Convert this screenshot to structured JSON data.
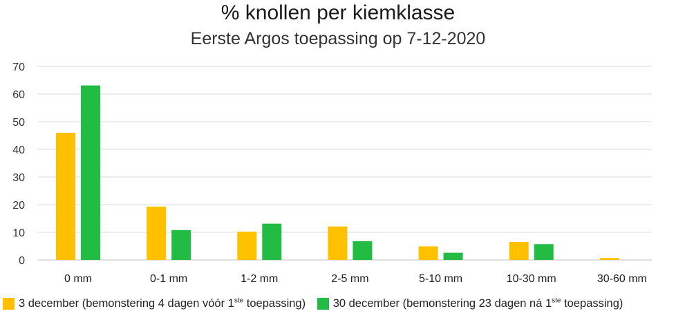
{
  "chart_data": {
    "type": "bar",
    "title": "% knollen per kiemklasse",
    "subtitle": "Eerste Argos toepassing op 7-12-2020",
    "categories": [
      "0 mm",
      "0-1 mm",
      "1-2 mm",
      "2-5 mm",
      "5-10 mm",
      "10-30 mm",
      "30-60 mm"
    ],
    "ylim": [
      0,
      70
    ],
    "yticks": [
      0,
      10,
      20,
      30,
      40,
      50,
      60,
      70
    ],
    "grid": true,
    "legend_position": "bottom",
    "series": [
      {
        "name": "3 december (bemonstering 4 dagen vóór 1ste toepassing)",
        "legend_prefix": "3 december (bemonstering 4 dagen vóór 1",
        "legend_sup": "ste",
        "legend_suffix": " toepassing)",
        "color": "#ffc000",
        "values": [
          46,
          19.3,
          10.2,
          12.1,
          4.9,
          6.5,
          0.7
        ]
      },
      {
        "name": "30 december (bemonstering 23 dagen ná 1ste toepassing)",
        "legend_prefix": "30 december (bemonstering 23 dagen ná 1",
        "legend_sup": "ste",
        "legend_suffix": " toepassing)",
        "color": "#22bb44",
        "values": [
          63.1,
          10.8,
          13.1,
          6.8,
          2.6,
          5.7,
          0
        ]
      }
    ]
  }
}
